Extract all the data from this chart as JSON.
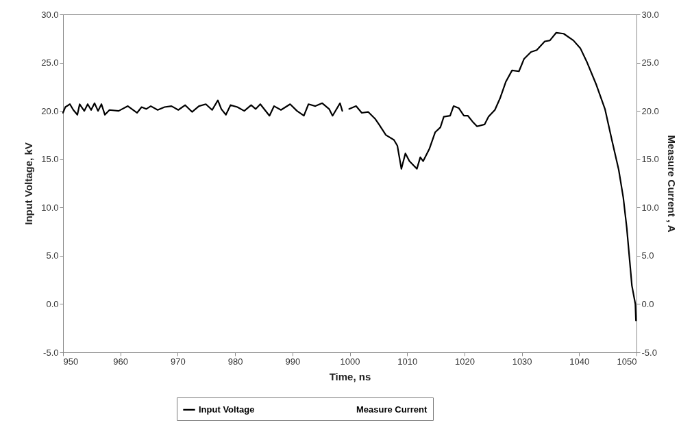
{
  "chart_data": {
    "type": "line",
    "xlabel": "Time, ns",
    "ylabel": "Input Voltage, kV",
    "y2label": "Measure Current , A",
    "xlim": [
      950,
      1050
    ],
    "xticks": [
      950,
      960,
      970,
      980,
      990,
      1000,
      1010,
      1020,
      1030,
      1040,
      1050
    ],
    "ylim": [
      -5,
      30
    ],
    "yticks": [
      {
        "value": -5,
        "label": "-5.0"
      },
      {
        "value": 0,
        "label": "0.0"
      },
      {
        "value": 5,
        "label": "5.0"
      },
      {
        "value": 10,
        "label": "10.0"
      },
      {
        "value": 15,
        "label": "15.0"
      },
      {
        "value": 20,
        "label": "20.0"
      },
      {
        "value": 25,
        "label": "25.0"
      },
      {
        "value": 30,
        "label": "30.0"
      }
    ],
    "y2lim": [
      -5,
      30
    ],
    "y2ticks": [
      {
        "value": -5,
        "label": "-5.0"
      },
      {
        "value": 0,
        "label": "0.0"
      },
      {
        "value": 5,
        "label": "5.0"
      },
      {
        "value": 10,
        "label": "10.0"
      },
      {
        "value": 15,
        "label": "15.0"
      },
      {
        "value": 20,
        "label": "20.0"
      },
      {
        "value": 25,
        "label": "25.0"
      },
      {
        "value": 30,
        "label": "30.0"
      }
    ],
    "legend": "bottom",
    "series": [
      {
        "name": "Input Voltage",
        "color": "#000000",
        "x": [
          950.0,
          950.4,
          951.2,
          951.8,
          952.5,
          952.9,
          953.7,
          954.3,
          954.9,
          955.5,
          956.1,
          956.7,
          957.3,
          958.1,
          959.7,
          961.3,
          962.9,
          963.7,
          964.5,
          965.3,
          966.5,
          967.7,
          968.9,
          970.1,
          971.3,
          972.5,
          973.7,
          974.9,
          976.0,
          977.0,
          977.6,
          978.4,
          979.2,
          980.4,
          981.6,
          982.8,
          983.6,
          984.4,
          986.0,
          986.8,
          988.0,
          989.6,
          990.8,
          992.0,
          992.8,
          994.0,
          995.2,
          996.4,
          997.0,
          998.3,
          998.7,
          999.3,
          999.9,
          1001.1,
          1002.1,
          1003.2,
          1004.4,
          1005.1,
          1006.3,
          1007.7,
          1008.3,
          1009.0,
          1009.7,
          1010.4,
          1011.7,
          1012.3,
          1012.8,
          1013.9,
          1014.9,
          1015.8,
          1016.4,
          1017.5,
          1018.1,
          1019.0,
          1019.9,
          1020.6,
          1021.4,
          1022.2,
          1023.5,
          1024.2,
          1025.3,
          1026.2,
          1027.2,
          1028.3,
          1029.5,
          1030.4,
          1031.6,
          1032.6,
          1034.0,
          1034.9,
          1036.0,
          1037.3,
          1039.0,
          1040.2,
          1041.4,
          1043.0,
          1044.5,
          1045.7,
          1046.9,
          1047.7,
          1048.3,
          1049.2,
          1049.8,
          1049.9
        ],
        "values": [
          19.8,
          20.4,
          20.7,
          20.1,
          19.6,
          20.7,
          20.0,
          20.7,
          20.1,
          20.8,
          20.0,
          20.7,
          19.6,
          20.1,
          20.0,
          20.5,
          19.8,
          20.4,
          20.2,
          20.5,
          20.1,
          20.4,
          20.5,
          20.1,
          20.6,
          19.9,
          20.5,
          20.7,
          20.1,
          21.1,
          20.2,
          19.6,
          20.6,
          20.4,
          20.0,
          20.6,
          20.2,
          20.7,
          19.5,
          20.5,
          20.1,
          20.7,
          20.0,
          19.5,
          20.7,
          20.5,
          20.8,
          20.2,
          19.5,
          20.8,
          20.0,
          null,
          20.2,
          20.5,
          19.8,
          19.9,
          19.2,
          18.6,
          17.5,
          17.0,
          16.4,
          14.0,
          15.6,
          14.8,
          14.0,
          15.2,
          14.8,
          16.1,
          17.8,
          18.3,
          19.4,
          19.5,
          20.5,
          20.3,
          19.5,
          19.5,
          18.9,
          18.4,
          18.6,
          19.4,
          20.1,
          21.3,
          23.0,
          24.2,
          24.1,
          25.4,
          26.1,
          26.3,
          27.2,
          27.3,
          28.1,
          28.0,
          27.3,
          26.5,
          25.0,
          22.7,
          20.2,
          17.0,
          13.9,
          11.0,
          7.9,
          1.9,
          0.0,
          -1.7
        ]
      },
      {
        "name": "Measure Current",
        "axis": "y2"
      }
    ]
  }
}
